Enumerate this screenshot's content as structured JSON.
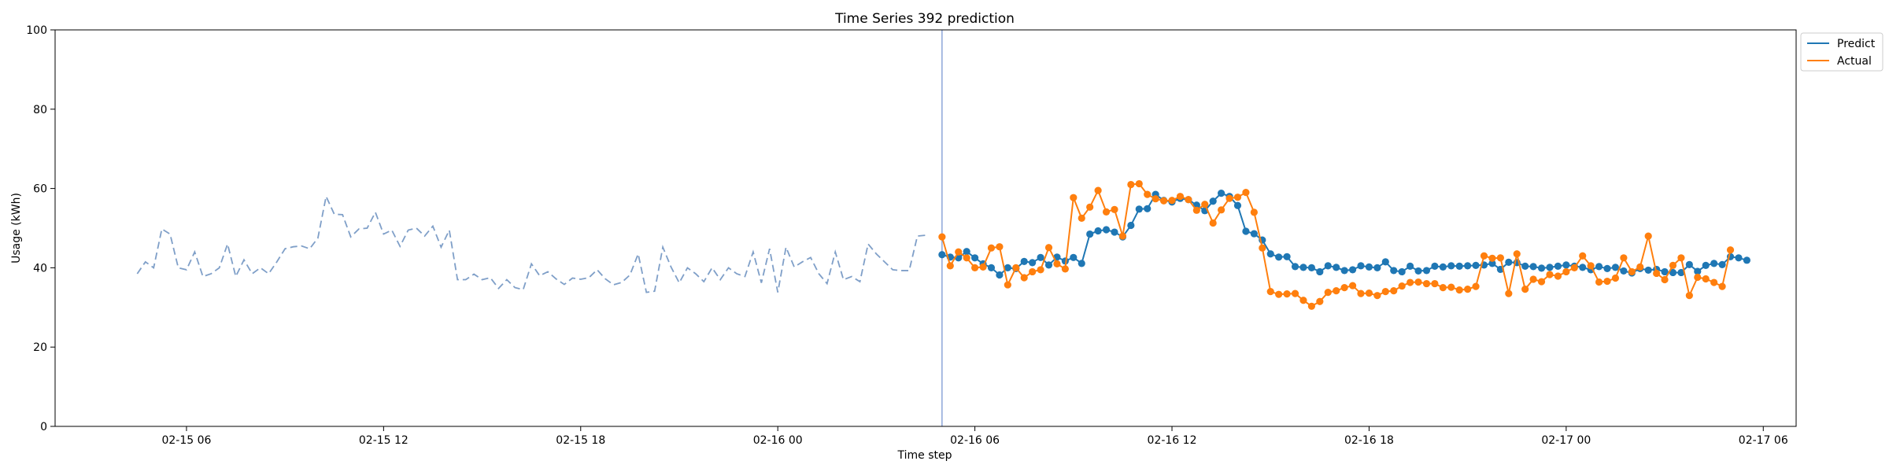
{
  "chart_data": {
    "type": "line",
    "title": "Time Series 392 prediction",
    "xlabel": "Time step",
    "ylabel": "Usage (kWh)",
    "x_axis": {
      "type": "datetime",
      "range": [
        "2024-02-15T02:00:00",
        "2024-02-17T07:00:00"
      ],
      "ticks": [
        {
          "at": "2024-02-15T06:00:00",
          "label": "02-15 06"
        },
        {
          "at": "2024-02-15T12:00:00",
          "label": "02-15 12"
        },
        {
          "at": "2024-02-15T18:00:00",
          "label": "02-15 18"
        },
        {
          "at": "2024-02-16T00:00:00",
          "label": "02-16 00"
        },
        {
          "at": "2024-02-16T06:00:00",
          "label": "02-16 06"
        },
        {
          "at": "2024-02-16T12:00:00",
          "label": "02-16 12"
        },
        {
          "at": "2024-02-16T18:00:00",
          "label": "02-16 18"
        },
        {
          "at": "2024-02-17T00:00:00",
          "label": "02-17 00"
        },
        {
          "at": "2024-02-17T06:00:00",
          "label": "02-17 06"
        }
      ]
    },
    "y_axis": {
      "range": [
        0,
        100
      ],
      "ticks": [
        0,
        20,
        40,
        60,
        80,
        100
      ]
    },
    "grid": false,
    "legend_position": "outside-top-right",
    "forecast_start": "2024-02-16T05:00:00",
    "colors": {
      "history": "#7f9fc8",
      "predict": "#1f77b4",
      "actual": "#ff7f0e",
      "forecast_line": "#6f8fd0"
    },
    "history": {
      "style": "dashed",
      "start": "2024-02-15T04:30:00",
      "step_minutes": 15,
      "values": [
        38.5,
        41.5,
        40,
        49.8,
        48.5,
        40,
        39.5,
        44,
        37.8,
        38.5,
        40,
        46,
        37.8,
        42,
        38.5,
        40,
        38.5,
        41.5,
        44.8,
        45.3,
        45.5,
        44.8,
        47.5,
        58,
        53.5,
        53.4,
        47.8,
        49.8,
        50,
        54,
        48.5,
        49.5,
        45.4,
        49.5,
        50,
        48,
        50.5,
        45.2,
        49.5,
        37,
        37,
        38.4,
        37,
        37.5,
        34.8,
        37,
        35,
        34.5,
        41,
        38,
        39,
        37.2,
        35.8,
        37.4,
        37.1,
        37.5,
        39.5,
        37.2,
        35.7,
        36.3,
        38.2,
        43.5,
        33.8,
        34.1,
        45.2,
        40.2,
        36.2,
        40,
        38.5,
        36.5,
        40,
        37,
        40,
        38.5,
        37.8,
        44,
        36.2,
        44.8,
        33.8,
        45.2,
        40.2,
        41.5,
        42.6,
        38.5,
        36,
        44,
        37,
        37.8,
        36.5,
        46,
        43.5,
        41.5,
        39.5,
        39.3,
        39.3,
        48,
        48.2
      ]
    },
    "series": [
      {
        "name": "Predict",
        "start": "2024-02-16T05:00:00",
        "step_minutes": 15,
        "values": [
          43.3,
          42.7,
          42.5,
          44.1,
          42.5,
          41,
          40,
          38.2,
          40,
          39.8,
          41.6,
          41.3,
          42.6,
          40.7,
          42.7,
          41.7,
          42.6,
          41.1,
          48.5,
          49.3,
          49.6,
          49,
          47.8,
          50.7,
          54.8,
          54.9,
          58.5,
          57,
          56.6,
          57.5,
          57.2,
          55.8,
          54.4,
          56.8,
          58.8,
          58,
          55.7,
          49.2,
          48.6,
          47,
          43.5,
          42.7,
          42.8,
          40.3,
          40.1,
          40,
          39,
          40.5,
          40.1,
          39.3,
          39.5,
          40.5,
          40.2,
          40,
          41.5,
          39.3,
          39,
          40.4,
          39.2,
          39.3,
          40.4,
          40.2,
          40.5,
          40.4,
          40.5,
          40.6,
          40.7,
          41.1,
          39.6,
          41.4,
          41.3,
          40.4,
          40.3,
          39.9,
          40.1,
          40.4,
          40.7,
          40.4,
          40.1,
          39.5,
          40.3,
          39.8,
          40.1,
          39.2,
          38.7,
          39.8,
          39.4,
          39.6,
          39,
          38.8,
          38.8,
          40.8,
          39.1,
          40.6,
          41.1,
          40.8,
          42.8,
          42.5,
          41.9
        ]
      },
      {
        "name": "Actual",
        "start": "2024-02-16T05:00:00",
        "step_minutes": 15,
        "values": [
          47.8,
          40.5,
          44,
          42.5,
          40,
          40.2,
          45,
          45.3,
          35.7,
          40,
          37.5,
          39,
          39.5,
          45.1,
          41,
          39.7,
          57.7,
          52.5,
          55.3,
          59.5,
          54.1,
          54.7,
          48,
          61,
          61.2,
          58.5,
          57.4,
          56.9,
          57,
          58,
          57.2,
          54.5,
          56,
          51.3,
          54.6,
          57.5,
          57.8,
          59,
          54,
          45,
          34,
          33.3,
          33.4,
          33.5,
          31.8,
          30.3,
          31.5,
          33.8,
          34.2,
          35,
          35.5,
          33.5,
          33.6,
          33,
          34,
          34.2,
          35.4,
          36.3,
          36.4,
          36,
          36,
          35,
          35.1,
          34.4,
          34.6,
          35.3,
          43,
          42.4,
          42.5,
          33.5,
          43.5,
          34.6,
          37.1,
          36.5,
          38.3,
          37.9,
          39,
          40,
          43,
          40.5,
          36.4,
          36.6,
          37.4,
          42.5,
          39,
          40.2,
          48,
          38.6,
          37,
          40.6,
          42.5,
          33,
          37.6,
          37.2,
          36.3,
          35.3,
          44.5
        ]
      }
    ]
  }
}
